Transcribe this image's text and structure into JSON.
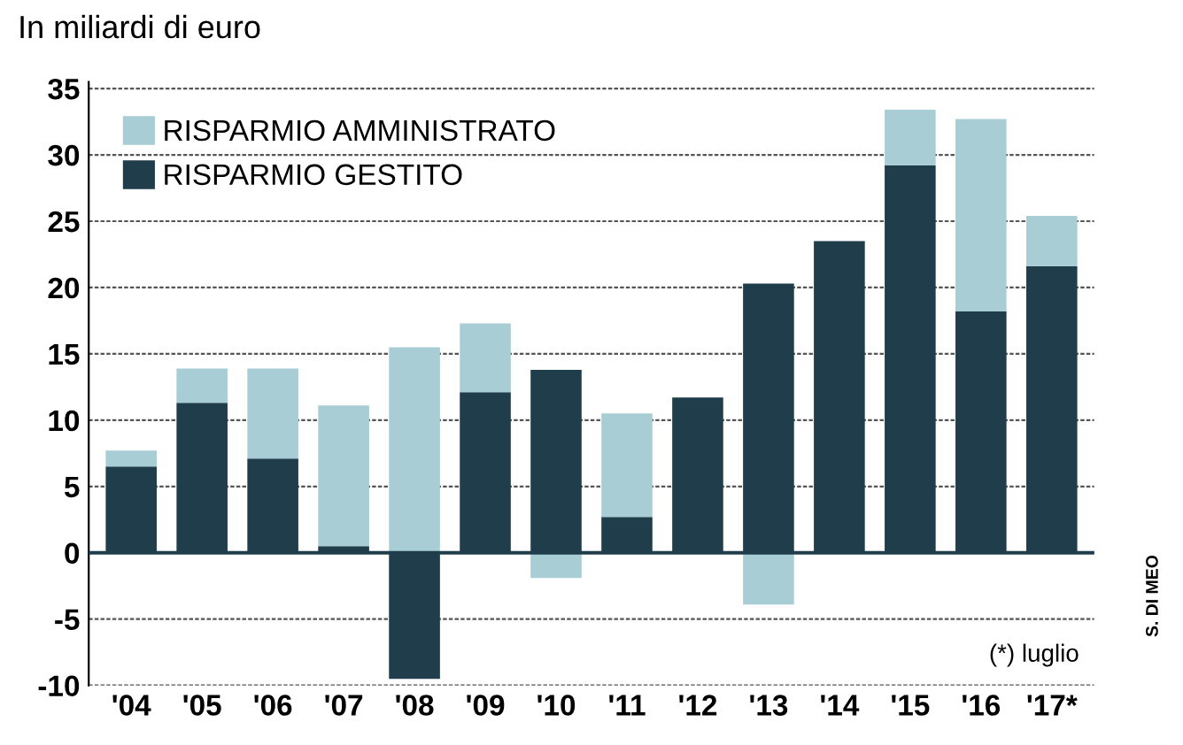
{
  "chart_data": {
    "type": "bar",
    "stacked": true,
    "title": "In miliardi di euro",
    "categories": [
      "'04",
      "'05",
      "'06",
      "'07",
      "'08",
      "'09",
      "'10",
      "'11",
      "'12",
      "'13",
      "'14",
      "'15",
      "'16",
      "'17*"
    ],
    "series": [
      {
        "name": "RISPARMIO GESTITO",
        "color": "#1f3d4a",
        "values": [
          6.5,
          11.3,
          7.1,
          0.5,
          -9.5,
          12.1,
          13.8,
          2.7,
          11.7,
          20.3,
          23.5,
          29.2,
          18.2,
          21.6
        ]
      },
      {
        "name": "RISPARMIO AMMINISTRATO",
        "color": "#a8cdd4",
        "values": [
          1.2,
          2.6,
          6.8,
          10.6,
          15.5,
          5.2,
          -1.9,
          7.8,
          null,
          -3.9,
          null,
          4.2,
          14.5,
          3.8
        ]
      }
    ],
    "ylim": [
      -10,
      35.5
    ],
    "yticks": [
      -10,
      -5,
      0,
      5,
      10,
      15,
      20,
      25,
      30,
      35
    ],
    "grid": "y",
    "legend": "top left",
    "ref_lines": [
      {
        "axis": "y",
        "value": 0,
        "color": "#1f3d4a"
      }
    ],
    "annotations": [
      "(*) luglio",
      "S. DI MEO"
    ]
  }
}
